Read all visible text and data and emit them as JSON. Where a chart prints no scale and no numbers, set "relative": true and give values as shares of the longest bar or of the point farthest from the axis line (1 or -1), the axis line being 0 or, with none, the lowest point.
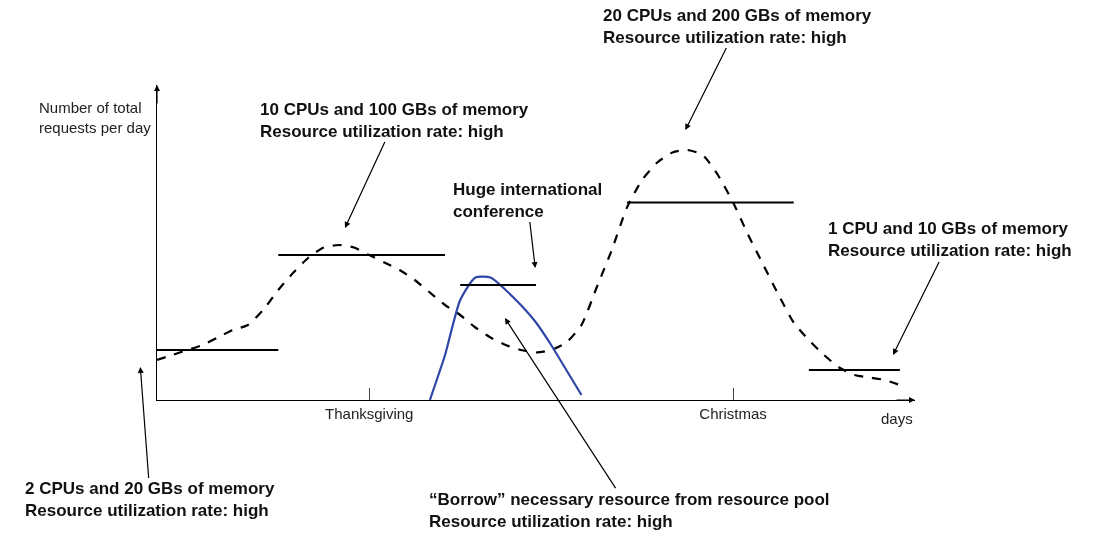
{
  "chart_data": {
    "type": "line",
    "relative": true,
    "xlabel": "days",
    "ylabel": "Number of total\nrequests per day",
    "grid": false,
    "marker": "none",
    "categories": [
      null,
      null,
      null,
      null,
      null,
      null,
      null,
      null,
      null,
      null,
      null,
      null,
      null,
      null,
      "Thanksgiving",
      null,
      null,
      null,
      null,
      null,
      null,
      null,
      null,
      null,
      null,
      null,
      null,
      null,
      null,
      null,
      null,
      null,
      null,
      null,
      null,
      null,
      null,
      null,
      "Christmas",
      null,
      null,
      null,
      null,
      null,
      null,
      null,
      null,
      null,
      null,
      null,
      null
    ],
    "series": [
      {
        "color": "#000000",
        "line_style": "dashed",
        "values": [
          0.16,
          0.18,
          0.2,
          0.22,
          0.25,
          0.28,
          0.3,
          0.36,
          0.44,
          0.51,
          0.57,
          0.61,
          0.62,
          0.61,
          0.58,
          0.55,
          0.52,
          0.48,
          0.43,
          0.38,
          0.34,
          0.29,
          0.25,
          0.22,
          0.2,
          0.19,
          0.2,
          0.23,
          0.3,
          0.45,
          0.6,
          0.77,
          0.88,
          0.95,
          0.99,
          1,
          0.98,
          0.9,
          0.79,
          0.66,
          0.54,
          0.42,
          0.31,
          0.24,
          0.18,
          0.13,
          0.1,
          0.09,
          0.08,
          0.06,
          null
        ]
      },
      {
        "color": "#2e46a8",
        "line_style": "solid",
        "values": [
          null,
          null,
          null,
          null,
          null,
          null,
          null,
          null,
          null,
          null,
          null,
          null,
          null,
          null,
          null,
          null,
          null,
          null,
          0,
          0.18,
          0.4,
          0.49,
          0.49,
          0.44,
          0.38,
          0.31,
          0.22,
          0.12,
          0.02,
          null,
          null,
          null,
          null,
          null,
          null,
          null,
          null,
          null,
          null,
          null,
          null,
          null,
          null,
          null,
          null,
          null,
          null,
          null,
          null,
          null,
          null
        ]
      },
      {
        "color": "#000000",
        "line_style": "solid",
        "values": [
          0.2,
          0.2,
          0.2,
          0.2,
          0.2,
          0.2,
          0.2,
          0.2,
          0.2,
          null,
          null,
          null,
          null,
          null,
          null,
          null,
          null,
          null,
          null,
          null,
          null,
          null,
          null,
          null,
          null,
          null,
          null,
          null,
          null,
          null,
          null,
          null,
          null,
          null,
          null,
          null,
          null,
          null,
          null,
          null,
          null,
          null,
          null,
          null,
          null,
          null,
          null,
          null,
          null,
          null,
          null
        ]
      },
      {
        "color": "#000000",
        "line_style": "solid",
        "values": [
          null,
          null,
          null,
          null,
          null,
          null,
          null,
          null,
          0.58,
          0.58,
          0.58,
          0.58,
          0.58,
          0.58,
          0.58,
          0.58,
          0.58,
          0.58,
          0.58,
          0.58,
          null,
          null,
          null,
          null,
          null,
          null,
          null,
          null,
          null,
          null,
          null,
          null,
          null,
          null,
          null,
          null,
          null,
          null,
          null,
          null,
          null,
          null,
          null,
          null,
          null,
          null,
          null,
          null,
          null,
          null,
          null
        ]
      },
      {
        "color": "#000000",
        "line_style": "solid",
        "values": [
          null,
          null,
          null,
          null,
          null,
          null,
          null,
          null,
          null,
          null,
          null,
          null,
          null,
          null,
          null,
          null,
          null,
          null,
          null,
          null,
          0.46,
          0.46,
          0.46,
          0.46,
          0.46,
          0.46,
          null,
          null,
          null,
          null,
          null,
          null,
          null,
          null,
          null,
          null,
          null,
          null,
          null,
          null,
          null,
          null,
          null,
          null,
          null,
          null,
          null,
          null,
          null,
          null,
          null
        ]
      },
      {
        "color": "#000000",
        "line_style": "solid",
        "values": [
          null,
          null,
          null,
          null,
          null,
          null,
          null,
          null,
          null,
          null,
          null,
          null,
          null,
          null,
          null,
          null,
          null,
          null,
          null,
          null,
          null,
          null,
          null,
          null,
          null,
          null,
          null,
          null,
          null,
          null,
          null,
          0.79,
          0.79,
          0.79,
          0.79,
          0.79,
          0.79,
          0.79,
          0.79,
          0.79,
          0.79,
          0.79,
          0.79,
          null,
          null,
          null,
          null,
          null,
          null,
          null,
          null
        ]
      },
      {
        "color": "#000000",
        "line_style": "solid",
        "values": [
          null,
          null,
          null,
          null,
          null,
          null,
          null,
          null,
          null,
          null,
          null,
          null,
          null,
          null,
          null,
          null,
          null,
          null,
          null,
          null,
          null,
          null,
          null,
          null,
          null,
          null,
          null,
          null,
          null,
          null,
          null,
          null,
          null,
          null,
          null,
          null,
          null,
          null,
          null,
          null,
          null,
          null,
          null,
          0.12,
          0.12,
          0.12,
          0.12,
          0.12,
          0.12,
          0.12,
          null
        ]
      }
    ],
    "annotations": [
      "2 CPUs and 20 GBs of memory\nResource utilization rate: high",
      "10 CPUs and 100 GBs of memory\nResource utilization rate: high",
      "Huge international\nconference",
      "20 CPUs and 200 GBs of memory\nResource utilization rate: high",
      "1 CPU and 10 GBs of memory\nResource utilization rate: high",
      "“Borrow” necessary resource from resource pool\nResource utilization rate: high"
    ]
  }
}
